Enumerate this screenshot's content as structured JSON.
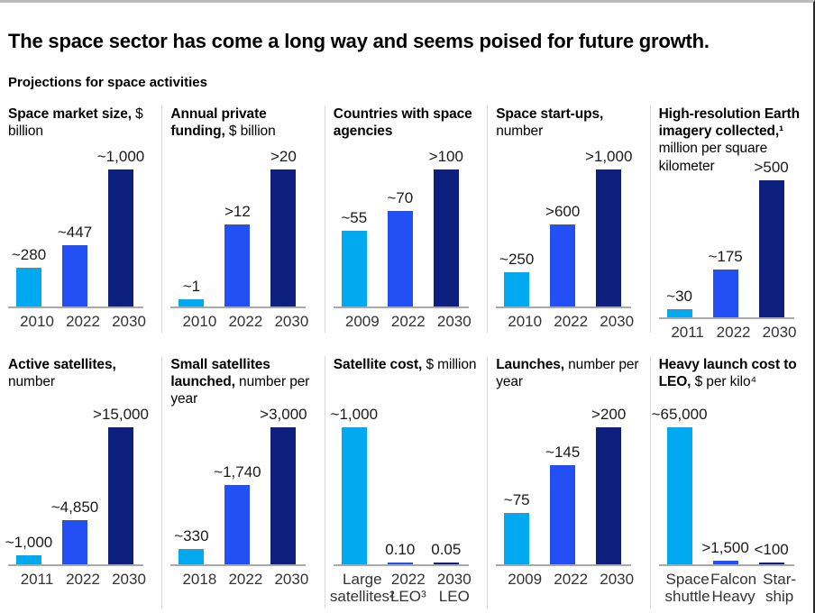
{
  "page": {
    "title": "The space sector has come a long way and seems poised for future growth.",
    "subtitle": "Projections for space activities"
  },
  "colors": {
    "cyan": "#00A9F0",
    "blue": "#2350F5",
    "navy": "#0D207D",
    "baseline": "#A9A9A9",
    "divider": "#D8D8D8"
  },
  "chart_data": [
    {
      "type": "bar",
      "title_bold": "Space market size,",
      "title_unit": "$ billion",
      "categories": [
        [
          "2010"
        ],
        [
          "2022"
        ],
        [
          "2030"
        ]
      ],
      "values": [
        280,
        447,
        1000
      ],
      "value_labels": [
        "~280",
        "~447",
        "~1,000"
      ],
      "ymax": 1000,
      "bar_colors": [
        "cyan",
        "blue",
        "navy"
      ]
    },
    {
      "type": "bar",
      "title_bold": "Annual private funding,",
      "title_unit": "$ billion",
      "categories": [
        [
          "2010"
        ],
        [
          "2022"
        ],
        [
          "2030"
        ]
      ],
      "values": [
        1,
        12,
        20
      ],
      "value_labels": [
        "~1",
        ">12",
        ">20"
      ],
      "ymax": 20,
      "bar_colors": [
        "cyan",
        "blue",
        "navy"
      ]
    },
    {
      "type": "bar",
      "title_bold": "Countries with space agencies",
      "title_unit": "",
      "categories": [
        [
          "2009"
        ],
        [
          "2022"
        ],
        [
          "2030"
        ]
      ],
      "values": [
        55,
        70,
        100
      ],
      "value_labels": [
        "~55",
        "~70",
        ">100"
      ],
      "ymax": 100,
      "bar_colors": [
        "cyan",
        "blue",
        "navy"
      ]
    },
    {
      "type": "bar",
      "title_bold": "Space start-ups,",
      "title_unit": "number",
      "categories": [
        [
          "2010"
        ],
        [
          "2022"
        ],
        [
          "2030"
        ]
      ],
      "values": [
        250,
        600,
        1000
      ],
      "value_labels": [
        "~250",
        ">600",
        ">1,000"
      ],
      "ymax": 1000,
      "bar_colors": [
        "cyan",
        "blue",
        "navy"
      ]
    },
    {
      "type": "bar",
      "title_bold": "High-resolution Earth imagery collected,¹",
      "title_unit": "million per square kilometer",
      "categories": [
        [
          "2011"
        ],
        [
          "2022"
        ],
        [
          "2030"
        ]
      ],
      "values": [
        30,
        175,
        500
      ],
      "value_labels": [
        "~30",
        "~175",
        ">500"
      ],
      "ymax": 500,
      "bar_colors": [
        "cyan",
        "blue",
        "navy"
      ]
    },
    {
      "type": "bar",
      "title_bold": "Active satellites,",
      "title_unit": "number",
      "categories": [
        [
          "2011"
        ],
        [
          "2022"
        ],
        [
          "2030"
        ]
      ],
      "values": [
        1000,
        4850,
        15000
      ],
      "value_labels": [
        "~1,000",
        "~4,850",
        ">15,000"
      ],
      "ymax": 15000,
      "bar_colors": [
        "cyan",
        "blue",
        "navy"
      ]
    },
    {
      "type": "bar",
      "title_bold": "Small satellites launched,",
      "title_unit": "number per year",
      "categories": [
        [
          "2018"
        ],
        [
          "2022"
        ],
        [
          "2030"
        ]
      ],
      "values": [
        330,
        1740,
        3000
      ],
      "value_labels": [
        "~330",
        "~1,740",
        ">3,000"
      ],
      "ymax": 3000,
      "bar_colors": [
        "cyan",
        "blue",
        "navy"
      ]
    },
    {
      "type": "bar",
      "title_bold": "Satellite cost,",
      "title_unit": "$ million",
      "categories": [
        [
          "Large",
          "satellites²"
        ],
        [
          "2022",
          "LEO³"
        ],
        [
          "2030",
          "LEO"
        ]
      ],
      "values": [
        1000,
        0.1,
        0.05
      ],
      "value_labels": [
        "~1,000",
        "0.10",
        "0.05"
      ],
      "ymax": 1000,
      "bar_colors": [
        "cyan",
        "blue",
        "navy"
      ]
    },
    {
      "type": "bar",
      "title_bold": "Launches,",
      "title_unit": "number per year",
      "categories": [
        [
          "2009"
        ],
        [
          "2022"
        ],
        [
          "2030"
        ]
      ],
      "values": [
        75,
        145,
        200
      ],
      "value_labels": [
        "~75",
        "~145",
        ">200"
      ],
      "ymax": 200,
      "bar_colors": [
        "cyan",
        "blue",
        "navy"
      ]
    },
    {
      "type": "bar",
      "title_bold": "Heavy launch cost to LEO,",
      "title_unit": "$ per kilo⁴",
      "categories": [
        [
          "Space",
          "shuttle"
        ],
        [
          "Falcon",
          "Heavy"
        ],
        [
          "Star-",
          "ship"
        ]
      ],
      "values": [
        65000,
        1500,
        100
      ],
      "value_labels": [
        "~65,000",
        ">1,500",
        "<100"
      ],
      "ymax": 65000,
      "bar_colors": [
        "cyan",
        "blue",
        "navy"
      ]
    }
  ]
}
